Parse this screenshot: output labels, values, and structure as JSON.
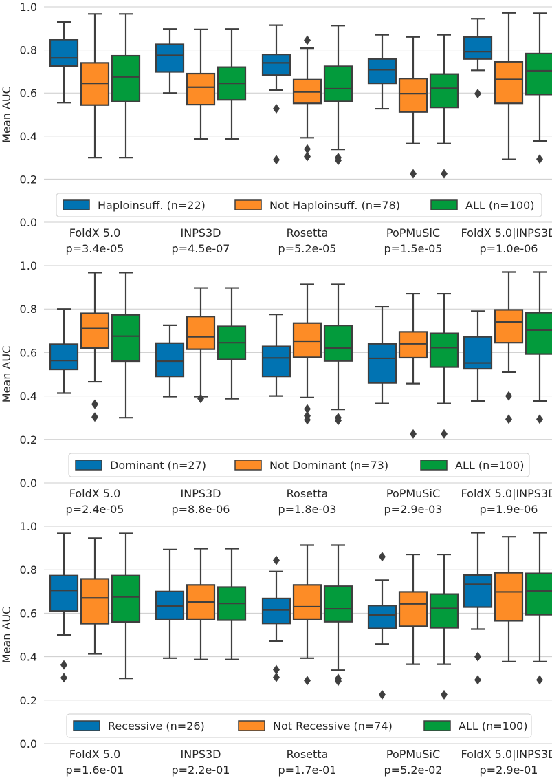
{
  "colors": {
    "group_a": "#0173b2",
    "group_b": "#fd8c26",
    "all": "#039b3c",
    "edge": "#3f3f3f",
    "grid": "#cccccc"
  },
  "chart_data": [
    {
      "type": "box",
      "ylabel": "Mean AUC",
      "ylim": [
        0.0,
        1.0
      ],
      "yticks": [
        "0.0",
        "0.2",
        "0.4",
        "0.6",
        "0.8",
        "1.0"
      ],
      "grid": "horizontal",
      "legend_position": "bottom-center",
      "methods": [
        "FoldX 5.0",
        "INPS3D",
        "Rosetta",
        "PoPMuSiC",
        "FoldX 5.0|INPS3D"
      ],
      "pvalues": [
        "p=3.4e-05",
        "p=4.5e-07",
        "p=5.2e-05",
        "p=1.5e-05",
        "p=1.0e-06"
      ],
      "series": [
        {
          "name": "Haploinsuff. (n=22)",
          "boxes": [
            {
              "whislo": 0.555,
              "q1": 0.725,
              "med": 0.763,
              "q3": 0.848,
              "whishi": 0.93,
              "fliers": []
            },
            {
              "whislo": 0.6,
              "q1": 0.698,
              "med": 0.775,
              "q3": 0.826,
              "whishi": 0.897,
              "fliers": []
            },
            {
              "whislo": 0.613,
              "q1": 0.683,
              "med": 0.74,
              "q3": 0.779,
              "whishi": 0.915,
              "fliers": [
                0.527,
                0.29
              ]
            },
            {
              "whislo": 0.527,
              "q1": 0.645,
              "med": 0.708,
              "q3": 0.758,
              "whishi": 0.87,
              "fliers": []
            },
            {
              "whislo": 0.705,
              "q1": 0.758,
              "med": 0.792,
              "q3": 0.86,
              "whishi": 0.945,
              "fliers": [
                0.597
              ]
            }
          ]
        },
        {
          "name": "Not Haploinsuff. (n=78)",
          "boxes": [
            {
              "whislo": 0.3,
              "q1": 0.544,
              "med": 0.645,
              "q3": 0.74,
              "whishi": 0.967,
              "fliers": []
            },
            {
              "whislo": 0.387,
              "q1": 0.546,
              "med": 0.627,
              "q3": 0.69,
              "whishi": 0.895,
              "fliers": []
            },
            {
              "whislo": 0.392,
              "q1": 0.552,
              "med": 0.605,
              "q3": 0.662,
              "whishi": 0.808,
              "fliers": [
                0.845,
                0.34,
                0.305
              ]
            },
            {
              "whislo": 0.365,
              "q1": 0.512,
              "med": 0.597,
              "q3": 0.667,
              "whishi": 0.86,
              "fliers": [
                0.225
              ]
            },
            {
              "whislo": 0.292,
              "q1": 0.552,
              "med": 0.663,
              "q3": 0.745,
              "whishi": 0.972,
              "fliers": []
            }
          ]
        },
        {
          "name": "ALL (n=100)",
          "boxes": [
            {
              "whislo": 0.3,
              "q1": 0.56,
              "med": 0.675,
              "q3": 0.773,
              "whishi": 0.967,
              "fliers": []
            },
            {
              "whislo": 0.387,
              "q1": 0.568,
              "med": 0.645,
              "q3": 0.72,
              "whishi": 0.897,
              "fliers": []
            },
            {
              "whislo": 0.338,
              "q1": 0.561,
              "med": 0.62,
              "q3": 0.724,
              "whishi": 0.913,
              "fliers": [
                0.3,
                0.287
              ]
            },
            {
              "whislo": 0.365,
              "q1": 0.533,
              "med": 0.622,
              "q3": 0.688,
              "whishi": 0.87,
              "fliers": [
                0.225
              ]
            },
            {
              "whislo": 0.377,
              "q1": 0.593,
              "med": 0.703,
              "q3": 0.783,
              "whishi": 0.97,
              "fliers": [
                0.293
              ]
            }
          ]
        }
      ]
    },
    {
      "type": "box",
      "ylabel": "Mean AUC",
      "ylim": [
        0.0,
        1.0
      ],
      "yticks": [
        "0.0",
        "0.2",
        "0.4",
        "0.6",
        "0.8",
        "1.0"
      ],
      "grid": "horizontal",
      "legend_position": "bottom-center",
      "methods": [
        "FoldX 5.0",
        "INPS3D",
        "Rosetta",
        "PoPMuSiC",
        "FoldX 5.0|INPS3D"
      ],
      "pvalues": [
        "p=2.4e-05",
        "p=8.8e-06",
        "p=1.8e-03",
        "p=2.9e-03",
        "p=1.9e-06"
      ],
      "series": [
        {
          "name": "Dominant (n=27)",
          "boxes": [
            {
              "whislo": 0.413,
              "q1": 0.522,
              "med": 0.563,
              "q3": 0.638,
              "whishi": 0.8,
              "fliers": []
            },
            {
              "whislo": 0.397,
              "q1": 0.49,
              "med": 0.56,
              "q3": 0.643,
              "whishi": 0.725,
              "fliers": []
            },
            {
              "whislo": 0.4,
              "q1": 0.49,
              "med": 0.575,
              "q3": 0.628,
              "whishi": 0.775,
              "fliers": []
            },
            {
              "whislo": 0.365,
              "q1": 0.46,
              "med": 0.573,
              "q3": 0.64,
              "whishi": 0.81,
              "fliers": []
            },
            {
              "whislo": 0.377,
              "q1": 0.525,
              "med": 0.552,
              "q3": 0.672,
              "whishi": 0.79,
              "fliers": []
            }
          ]
        },
        {
          "name": "Not Dominant (n=73)",
          "boxes": [
            {
              "whislo": 0.465,
              "q1": 0.62,
              "med": 0.71,
              "q3": 0.78,
              "whishi": 0.967,
              "fliers": [
                0.362,
                0.303
              ]
            },
            {
              "whislo": 0.397,
              "q1": 0.615,
              "med": 0.672,
              "q3": 0.765,
              "whishi": 0.897,
              "fliers": [
                0.388
              ]
            },
            {
              "whislo": 0.393,
              "q1": 0.578,
              "med": 0.652,
              "q3": 0.735,
              "whishi": 0.913,
              "fliers": [
                0.34,
                0.308,
                0.29
              ]
            },
            {
              "whislo": 0.457,
              "q1": 0.576,
              "med": 0.64,
              "q3": 0.695,
              "whishi": 0.87,
              "fliers": [
                0.225
              ]
            },
            {
              "whislo": 0.51,
              "q1": 0.645,
              "med": 0.74,
              "q3": 0.796,
              "whishi": 0.97,
              "fliers": [
                0.4,
                0.293
              ]
            }
          ]
        },
        {
          "name": "ALL (n=100)",
          "boxes": [
            {
              "whislo": 0.3,
              "q1": 0.56,
              "med": 0.675,
              "q3": 0.773,
              "whishi": 0.967,
              "fliers": []
            },
            {
              "whislo": 0.387,
              "q1": 0.568,
              "med": 0.645,
              "q3": 0.72,
              "whishi": 0.897,
              "fliers": []
            },
            {
              "whislo": 0.338,
              "q1": 0.561,
              "med": 0.62,
              "q3": 0.724,
              "whishi": 0.913,
              "fliers": [
                0.3,
                0.287
              ]
            },
            {
              "whislo": 0.365,
              "q1": 0.533,
              "med": 0.622,
              "q3": 0.688,
              "whishi": 0.87,
              "fliers": [
                0.225
              ]
            },
            {
              "whislo": 0.377,
              "q1": 0.593,
              "med": 0.703,
              "q3": 0.783,
              "whishi": 0.97,
              "fliers": [
                0.293
              ]
            }
          ]
        }
      ]
    },
    {
      "type": "box",
      "ylabel": "Mean AUC",
      "ylim": [
        0.0,
        1.0
      ],
      "yticks": [
        "0.0",
        "0.2",
        "0.4",
        "0.6",
        "0.8",
        "1.0"
      ],
      "grid": "horizontal",
      "legend_position": "bottom-center",
      "methods": [
        "FoldX 5.0",
        "INPS3D",
        "Rosetta",
        "PoPMuSiC",
        "FoldX 5.0|INPS3D"
      ],
      "pvalues": [
        "p=1.6e-01",
        "p=2.2e-01",
        "p=1.7e-01",
        "p=5.2e-02",
        "p=2.9e-01"
      ],
      "series": [
        {
          "name": "Recessive (n=26)",
          "boxes": [
            {
              "whislo": 0.5,
              "q1": 0.61,
              "med": 0.705,
              "q3": 0.773,
              "whishi": 0.967,
              "fliers": [
                0.362,
                0.303
              ]
            },
            {
              "whislo": 0.393,
              "q1": 0.57,
              "med": 0.633,
              "q3": 0.7,
              "whishi": 0.893,
              "fliers": []
            },
            {
              "whislo": 0.472,
              "q1": 0.553,
              "med": 0.615,
              "q3": 0.668,
              "whishi": 0.792,
              "fliers": [
                0.843,
                0.34,
                0.305
              ]
            },
            {
              "whislo": 0.458,
              "q1": 0.53,
              "med": 0.592,
              "q3": 0.635,
              "whishi": 0.752,
              "fliers": [
                0.86,
                0.225
              ]
            },
            {
              "whislo": 0.527,
              "q1": 0.628,
              "med": 0.733,
              "q3": 0.775,
              "whishi": 0.97,
              "fliers": [
                0.4,
                0.293
              ]
            }
          ]
        },
        {
          "name": "Not Recessive (n=74)",
          "boxes": [
            {
              "whislo": 0.413,
              "q1": 0.552,
              "med": 0.67,
              "q3": 0.758,
              "whishi": 0.945,
              "fliers": []
            },
            {
              "whislo": 0.387,
              "q1": 0.57,
              "med": 0.652,
              "q3": 0.73,
              "whishi": 0.897,
              "fliers": []
            },
            {
              "whislo": 0.393,
              "q1": 0.57,
              "med": 0.63,
              "q3": 0.73,
              "whishi": 0.913,
              "fliers": [
                0.29
              ]
            },
            {
              "whislo": 0.365,
              "q1": 0.54,
              "med": 0.643,
              "q3": 0.698,
              "whishi": 0.87,
              "fliers": []
            },
            {
              "whislo": 0.377,
              "q1": 0.565,
              "med": 0.698,
              "q3": 0.786,
              "whishi": 0.952,
              "fliers": []
            }
          ]
        },
        {
          "name": "ALL (n=100)",
          "boxes": [
            {
              "whislo": 0.3,
              "q1": 0.56,
              "med": 0.675,
              "q3": 0.773,
              "whishi": 0.967,
              "fliers": []
            },
            {
              "whislo": 0.387,
              "q1": 0.568,
              "med": 0.645,
              "q3": 0.72,
              "whishi": 0.897,
              "fliers": []
            },
            {
              "whislo": 0.338,
              "q1": 0.561,
              "med": 0.62,
              "q3": 0.724,
              "whishi": 0.913,
              "fliers": [
                0.3,
                0.287
              ]
            },
            {
              "whislo": 0.365,
              "q1": 0.533,
              "med": 0.622,
              "q3": 0.688,
              "whishi": 0.87,
              "fliers": [
                0.225
              ]
            },
            {
              "whislo": 0.377,
              "q1": 0.593,
              "med": 0.703,
              "q3": 0.783,
              "whishi": 0.97,
              "fliers": [
                0.293
              ]
            }
          ]
        }
      ]
    }
  ]
}
